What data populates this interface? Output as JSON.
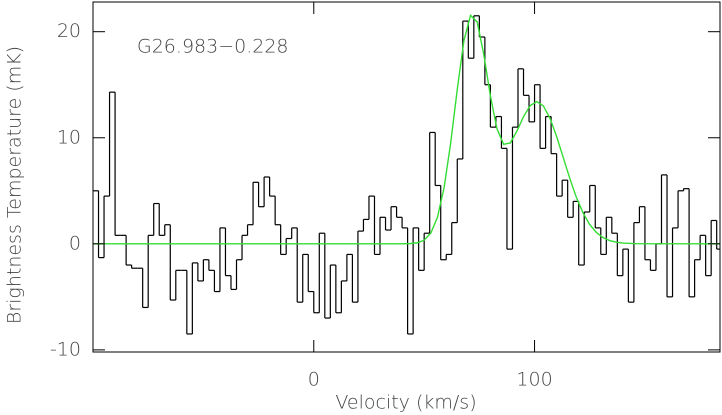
{
  "chart_data": {
    "type": "spectrum",
    "x_label": "Velocity (km/s)",
    "y_label": "Brightness Temperature (mK)",
    "annotation": "G26.983−0.228",
    "xlim": [
      -100,
      184
    ],
    "ylim": [
      -10.2,
      22.8
    ],
    "xticks": [
      0,
      100
    ],
    "yticks": [
      -10,
      0,
      10,
      20
    ],
    "series": [
      {
        "name": "spectrum",
        "color": "#000000",
        "style": "steps",
        "x": [
          -98.75,
          -96.25,
          -93.75,
          -91.25,
          -88.75,
          -86.25,
          -83.75,
          -81.25,
          -78.75,
          -76.25,
          -73.75,
          -71.25,
          -68.75,
          -66.25,
          -63.75,
          -61.25,
          -58.75,
          -56.25,
          -53.75,
          -51.25,
          -48.75,
          -46.25,
          -43.75,
          -41.25,
          -38.75,
          -36.25,
          -33.75,
          -31.25,
          -28.75,
          -26.25,
          -23.75,
          -21.25,
          -18.75,
          -16.25,
          -13.75,
          -11.25,
          -8.75,
          -6.25,
          -3.75,
          -1.25,
          1.25,
          3.75,
          6.25,
          8.75,
          11.25,
          13.75,
          16.25,
          18.75,
          21.25,
          23.75,
          26.25,
          28.75,
          31.25,
          33.75,
          36.25,
          38.75,
          41.25,
          43.75,
          46.25,
          48.75,
          51.25,
          53.75,
          56.25,
          58.75,
          61.25,
          63.75,
          66.25,
          68.75,
          71.25,
          73.75,
          76.25,
          78.75,
          81.25,
          83.75,
          86.25,
          88.75,
          91.25,
          93.75,
          96.25,
          98.75,
          101.25,
          103.75,
          106.25,
          108.75,
          111.25,
          113.75,
          116.25,
          118.75,
          121.25,
          123.75,
          126.25,
          128.75,
          131.25,
          133.75,
          136.25,
          138.75,
          141.25,
          143.75,
          146.25,
          148.75,
          151.25,
          153.75,
          156.25,
          158.75,
          161.25,
          163.75,
          166.25,
          168.75,
          171.25,
          173.75,
          176.25,
          178.75,
          181.25,
          183.75
        ],
        "values": [
          5,
          -1.3,
          4.5,
          14.3,
          0.8,
          0.8,
          -2,
          -2.3,
          -2.3,
          -6,
          0.8,
          3.8,
          0.8,
          1.8,
          -5.3,
          -2.5,
          -2.5,
          -8.5,
          -1.8,
          -3.5,
          -1.5,
          -2.5,
          -4.5,
          1.5,
          -3,
          -4.3,
          -1.5,
          0.8,
          1.8,
          5.8,
          3.5,
          6.3,
          4.5,
          1.8,
          -1,
          0.5,
          1.5,
          -5.5,
          -1,
          -4.5,
          -6.5,
          1,
          -7,
          -2,
          -6.5,
          -3.5,
          -1,
          -5.5,
          1.2,
          2.3,
          4.5,
          -1,
          2.5,
          1.3,
          3.5,
          2.5,
          1.5,
          -8.5,
          1.5,
          -2.5,
          1,
          10.5,
          5.5,
          -1.5,
          -1,
          2,
          8,
          21,
          17.5,
          21.5,
          19.5,
          15,
          11,
          12,
          9,
          -0.5,
          11,
          16.5,
          14,
          11.5,
          15,
          9,
          12,
          8.5,
          4.5,
          6,
          2.5,
          4,
          -2,
          3,
          5.5,
          1.5,
          -1,
          2.5,
          1,
          -3,
          -0.5,
          -5.5,
          2,
          3.5,
          -1.5,
          -2.5,
          0,
          6.5,
          -5,
          1.5,
          5,
          5.2,
          -5,
          -1.5,
          0.8,
          -3,
          2.2,
          -0.5
        ]
      },
      {
        "name": "fit",
        "color": "#33dd33",
        "style": "line",
        "x": [
          -100,
          40,
          44,
          47,
          50,
          53,
          56,
          59,
          62,
          65,
          68,
          71,
          74,
          77,
          80,
          83,
          86,
          89,
          92,
          95,
          98,
          101,
          104,
          107,
          110,
          113,
          116,
          119,
          122,
          125,
          128,
          131,
          134,
          137,
          140,
          146,
          184
        ],
        "values": [
          0,
          0,
          0.03,
          0.1,
          0.35,
          1.01,
          2.48,
          5.27,
          9.48,
          14.57,
          19.15,
          21.54,
          20.93,
          17.86,
          13.95,
          10.83,
          9.38,
          9.51,
          10.62,
          11.99,
          13.03,
          13.41,
          13.0,
          11.83,
          10.12,
          8.13,
          6.14,
          4.35,
          2.9,
          1.81,
          1.07,
          0.59,
          0.31,
          0.15,
          0.07,
          0.01,
          0
        ]
      }
    ]
  }
}
